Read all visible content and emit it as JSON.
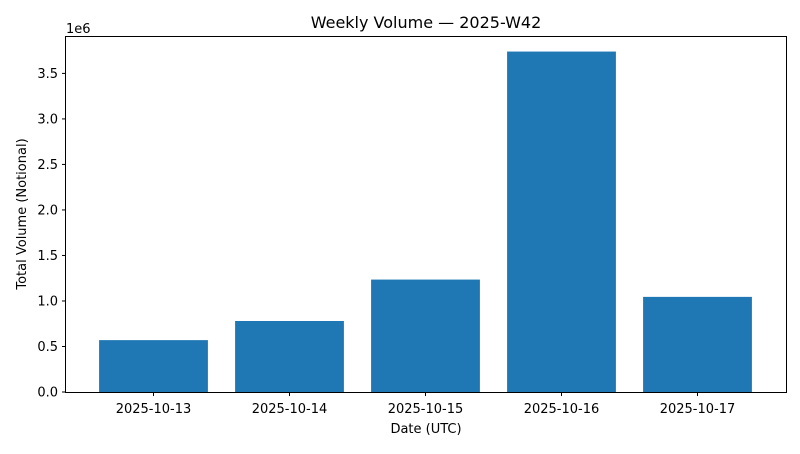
{
  "chart_data": {
    "type": "bar",
    "title": "Weekly Volume — 2025-W42",
    "xlabel": "Date (UTC)",
    "ylabel": "Total Volume (Notional)",
    "offset_label": "1e6",
    "categories": [
      "2025-10-13",
      "2025-10-14",
      "2025-10-15",
      "2025-10-16",
      "2025-10-17"
    ],
    "values": [
      570000,
      780000,
      1235000,
      3740000,
      1045000
    ],
    "ylim": [
      0,
      3900000
    ],
    "yticks": [
      0,
      500000,
      1000000,
      1500000,
      2000000,
      2500000,
      3000000,
      3500000
    ],
    "ytick_labels": [
      "0.0",
      "0.5",
      "1.0",
      "1.5",
      "2.0",
      "2.5",
      "3.0",
      "3.5"
    ],
    "bar_color": "#1f77b4",
    "grid": false,
    "legend": "none"
  }
}
